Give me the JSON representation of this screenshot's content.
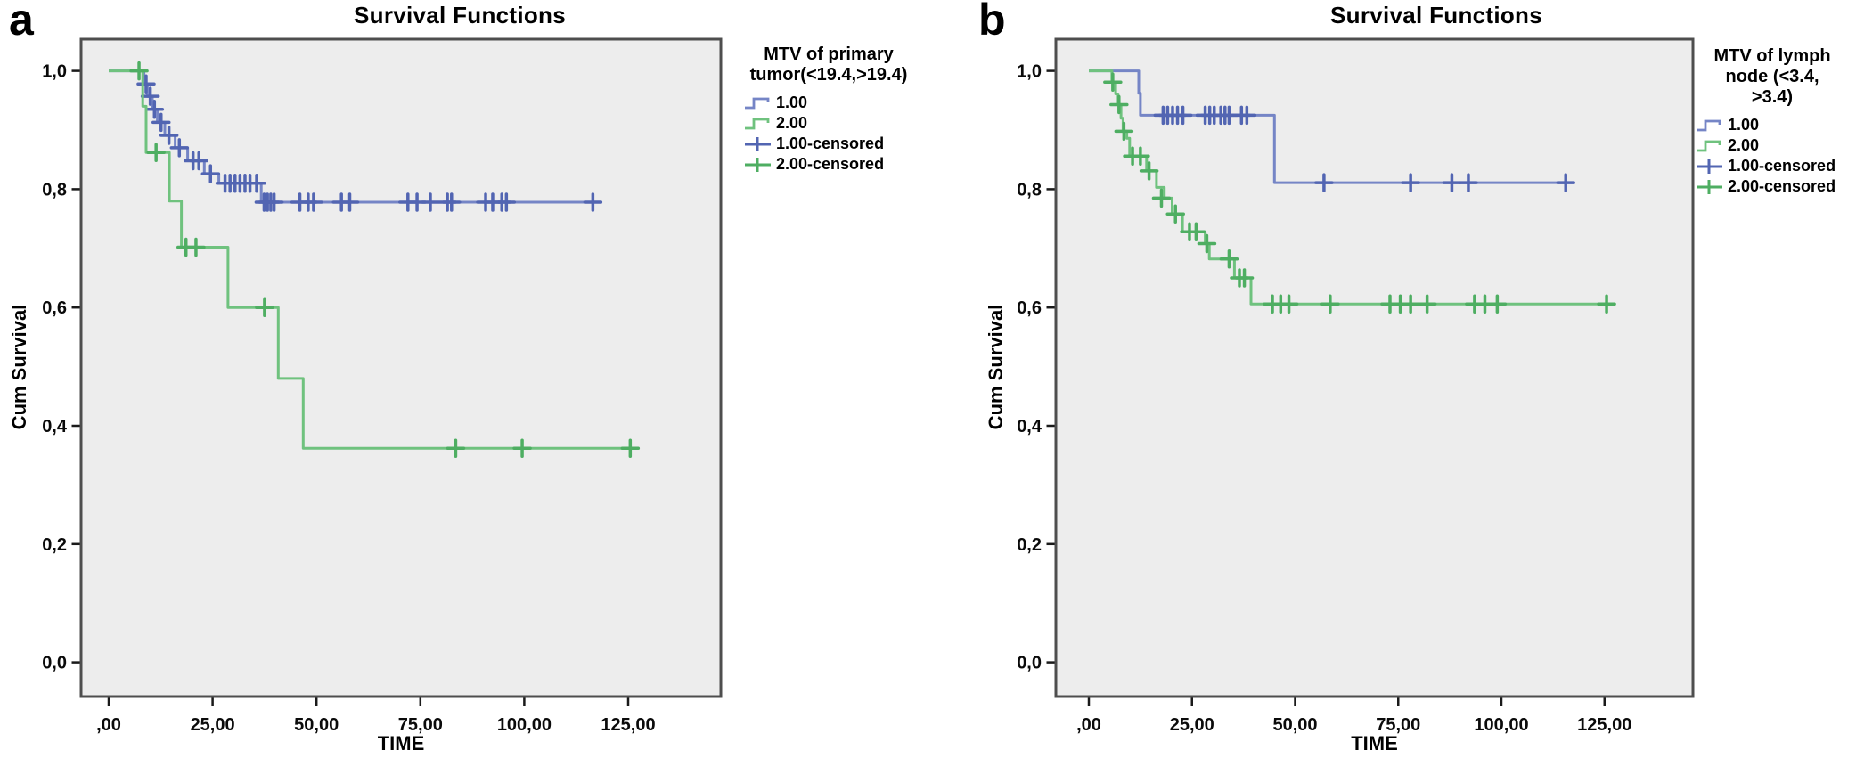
{
  "colors": {
    "series_blue_line": "#7585c6",
    "series_blue_censor": "#5265b2",
    "series_green_line": "#6fc27e",
    "series_green_censor": "#4eae62",
    "plot_background": "#ededed",
    "plot_frame": "#4e4e4e",
    "tick_mark": "#1a1a1a",
    "text": "#0a0a0a"
  },
  "chart_data": [
    {
      "type": "line",
      "subtype": "kaplan-meier-step",
      "panel_letter": "a",
      "title": "Survival Functions",
      "xlabel": "TIME",
      "ylabel": "Cum Survival",
      "xlim": [
        -8,
        148
      ],
      "ylim": [
        0,
        1.06
      ],
      "grid": false,
      "x_ticks": {
        "values": [
          0,
          25,
          50,
          75,
          100,
          125
        ],
        "labels": [
          ",00",
          "25,00",
          "50,00",
          "75,00",
          "100,00",
          "125,00"
        ]
      },
      "y_ticks": {
        "values": [
          1.0,
          0.8,
          0.6,
          0.4,
          0.2,
          0.0
        ],
        "labels": [
          "1,0",
          "0,8",
          "0,6",
          "0,4",
          "0,2",
          "0,0"
        ]
      },
      "legend": {
        "position": "right",
        "title_lines": [
          "MTV of primary",
          "tumor(<19.4,>19.4)"
        ],
        "entries": [
          {
            "label": "1.00",
            "symbol": "step",
            "color": "#7585c6"
          },
          {
            "label": "2.00",
            "symbol": "step",
            "color": "#6fc27e"
          },
          {
            "label": "1.00-censored",
            "symbol": "plus",
            "color": "#5265b2"
          },
          {
            "label": "2.00-censored",
            "symbol": "plus",
            "color": "#4eae62"
          }
        ]
      },
      "series": [
        {
          "name": "1.00",
          "line_color": "#7585c6",
          "censor_color": "#5265b2",
          "steps": [
            [
              0,
              1.0
            ],
            [
              8.5,
              0.978
            ],
            [
              9.3,
              0.957
            ],
            [
              10.5,
              0.935
            ],
            [
              11.7,
              0.913
            ],
            [
              13.5,
              0.891
            ],
            [
              16,
              0.87
            ],
            [
              19,
              0.848
            ],
            [
              23,
              0.826
            ],
            [
              26.5,
              0.81
            ],
            [
              36.7,
              0.778
            ]
          ],
          "end_time": 116.5,
          "censored": [
            [
              9,
              0.978
            ],
            [
              10,
              0.957
            ],
            [
              11,
              0.935
            ],
            [
              12.6,
              0.913
            ],
            [
              14.5,
              0.891
            ],
            [
              17,
              0.87
            ],
            [
              20.3,
              0.848
            ],
            [
              21.7,
              0.848
            ],
            [
              24.5,
              0.826
            ],
            [
              28,
              0.81
            ],
            [
              29.2,
              0.81
            ],
            [
              30.4,
              0.81
            ],
            [
              31.6,
              0.81
            ],
            [
              32.8,
              0.81
            ],
            [
              34,
              0.81
            ],
            [
              35.6,
              0.81
            ],
            [
              37.4,
              0.778
            ],
            [
              38.2,
              0.778
            ],
            [
              39,
              0.778
            ],
            [
              39.8,
              0.778
            ],
            [
              46,
              0.778
            ],
            [
              48,
              0.778
            ],
            [
              49.3,
              0.778
            ],
            [
              56,
              0.778
            ],
            [
              58,
              0.778
            ],
            [
              72,
              0.778
            ],
            [
              74.2,
              0.778
            ],
            [
              77.4,
              0.778
            ],
            [
              81.5,
              0.778
            ],
            [
              82.5,
              0.778
            ],
            [
              90.7,
              0.778
            ],
            [
              92.4,
              0.778
            ],
            [
              94.6,
              0.778
            ],
            [
              95.7,
              0.778
            ],
            [
              116.5,
              0.778
            ]
          ]
        },
        {
          "name": "2.00",
          "line_color": "#6fc27e",
          "censor_color": "#4eae62",
          "steps": [
            [
              0,
              1.0
            ],
            [
              8.2,
              0.94
            ],
            [
              9,
              0.862
            ],
            [
              14.6,
              0.78
            ],
            [
              17.5,
              0.702
            ],
            [
              28.7,
              0.6
            ],
            [
              40.8,
              0.48
            ],
            [
              46.8,
              0.362
            ]
          ],
          "end_time": 125.5,
          "censored": [
            [
              7.3,
              1.0
            ],
            [
              11.4,
              0.862
            ],
            [
              18.6,
              0.702
            ],
            [
              21,
              0.702
            ],
            [
              37.5,
              0.6
            ],
            [
              83.5,
              0.362
            ],
            [
              99.5,
              0.362
            ],
            [
              125.5,
              0.362
            ]
          ]
        }
      ]
    },
    {
      "type": "line",
      "subtype": "kaplan-meier-step",
      "panel_letter": "b",
      "title": "Survival Functions",
      "xlabel": "TIME",
      "ylabel": "Cum Survival",
      "xlim": [
        -8,
        148
      ],
      "ylim": [
        0,
        1.06
      ],
      "grid": false,
      "x_ticks": {
        "values": [
          0,
          25,
          50,
          75,
          100,
          125
        ],
        "labels": [
          ",00",
          "25,00",
          "50,00",
          "75,00",
          "100,00",
          "125,00"
        ]
      },
      "y_ticks": {
        "values": [
          1.0,
          0.8,
          0.6,
          0.4,
          0.2,
          0.0
        ],
        "labels": [
          "1,0",
          "0,8",
          "0,6",
          "0,4",
          "0,2",
          "0,0"
        ]
      },
      "legend": {
        "position": "right",
        "title_lines": [
          "MTV of lymph",
          "node (<3.4,",
          ">3.4)"
        ],
        "entries": [
          {
            "label": "1.00",
            "symbol": "step",
            "color": "#7585c6"
          },
          {
            "label": "2.00",
            "symbol": "step",
            "color": "#6fc27e"
          },
          {
            "label": "1.00-censored",
            "symbol": "plus",
            "color": "#5265b2"
          },
          {
            "label": "2.00-censored",
            "symbol": "plus",
            "color": "#4eae62"
          }
        ]
      },
      "series": [
        {
          "name": "1.00",
          "line_color": "#7585c6",
          "censor_color": "#5265b2",
          "steps": [
            [
              0,
              1.0
            ],
            [
              12.1,
              0.962
            ],
            [
              12.5,
              0.925
            ],
            [
              45,
              0.811
            ]
          ],
          "end_time": 115.6,
          "censored": [
            [
              18,
              0.925
            ],
            [
              19.1,
              0.925
            ],
            [
              20.3,
              0.925
            ],
            [
              21.5,
              0.925
            ],
            [
              22.8,
              0.925
            ],
            [
              28.2,
              0.925
            ],
            [
              29.3,
              0.925
            ],
            [
              30.4,
              0.925
            ],
            [
              32,
              0.925
            ],
            [
              33,
              0.925
            ],
            [
              34,
              0.925
            ],
            [
              37,
              0.925
            ],
            [
              38.3,
              0.925
            ],
            [
              57,
              0.811
            ],
            [
              78,
              0.811
            ],
            [
              88,
              0.811
            ],
            [
              92,
              0.811
            ],
            [
              115.6,
              0.811
            ]
          ]
        },
        {
          "name": "2.00",
          "line_color": "#6fc27e",
          "censor_color": "#4eae62",
          "steps": [
            [
              0,
              1.0
            ],
            [
              5.6,
              0.981
            ],
            [
              6.5,
              0.961
            ],
            [
              7.1,
              0.943
            ],
            [
              7.8,
              0.92
            ],
            [
              8.3,
              0.898
            ],
            [
              9.2,
              0.886
            ],
            [
              9.9,
              0.856
            ],
            [
              14,
              0.831
            ],
            [
              16.4,
              0.803
            ],
            [
              18.3,
              0.785
            ],
            [
              20.2,
              0.758
            ],
            [
              22.7,
              0.728
            ],
            [
              28.2,
              0.708
            ],
            [
              29.2,
              0.682
            ],
            [
              35.3,
              0.65
            ],
            [
              39.3,
              0.606
            ]
          ],
          "end_time": 125.5,
          "censored": [
            [
              5.8,
              0.981
            ],
            [
              7.3,
              0.943
            ],
            [
              8.5,
              0.898
            ],
            [
              10.6,
              0.856
            ],
            [
              12.5,
              0.856
            ],
            [
              14.6,
              0.831
            ],
            [
              17.6,
              0.785
            ],
            [
              21,
              0.758
            ],
            [
              24.4,
              0.728
            ],
            [
              26,
              0.728
            ],
            [
              28.6,
              0.708
            ],
            [
              34,
              0.682
            ],
            [
              36.5,
              0.65
            ],
            [
              37.7,
              0.65
            ],
            [
              44.5,
              0.606
            ],
            [
              46.5,
              0.606
            ],
            [
              48.5,
              0.606
            ],
            [
              58.5,
              0.606
            ],
            [
              73,
              0.606
            ],
            [
              75.5,
              0.606
            ],
            [
              78,
              0.606
            ],
            [
              82,
              0.606
            ],
            [
              93.5,
              0.606
            ],
            [
              96,
              0.606
            ],
            [
              99,
              0.606
            ],
            [
              125.5,
              0.606
            ]
          ]
        }
      ]
    }
  ]
}
